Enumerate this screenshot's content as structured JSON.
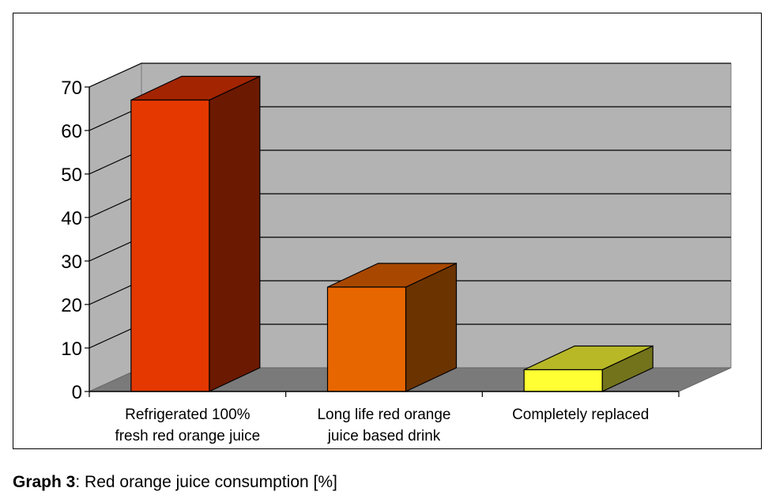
{
  "chart_data": {
    "type": "bar",
    "categories": [
      [
        "Refrigerated 100%",
        "fresh red orange juice"
      ],
      [
        "Long life red orange",
        "juice based drink"
      ],
      [
        "Completely replaced"
      ]
    ],
    "values": [
      67,
      24,
      5
    ],
    "ylim": [
      0,
      70
    ],
    "yticks": [
      0,
      10,
      20,
      30,
      40,
      50,
      60,
      70
    ],
    "grid": true,
    "legend": "none",
    "style": "3d",
    "colors": [
      {
        "front": "#E43800",
        "top": "#A32400",
        "side": "#6B1900"
      },
      {
        "front": "#E86600",
        "top": "#A84800",
        "side": "#6B3300"
      },
      {
        "front": "#FFFF33",
        "top": "#B8B827",
        "side": "#73731C"
      }
    ]
  },
  "caption": {
    "label": "Graph 3",
    "text": ": Red orange juice consumption [%]"
  }
}
